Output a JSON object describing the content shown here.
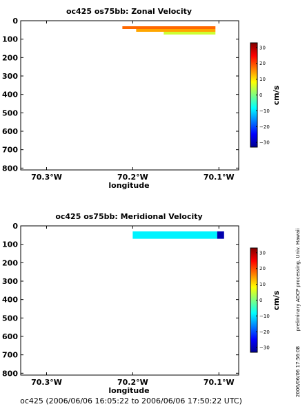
{
  "chart_data": [
    {
      "type": "heatmap",
      "title": "oc425 os75bb: Zonal Velocity",
      "xlabel": "longitude",
      "ylabel": "",
      "xlim": [
        -70.33,
        -70.077
      ],
      "ylim": [
        810,
        0
      ],
      "yticks": [
        "0",
        "100",
        "200",
        "300",
        "400",
        "500",
        "600",
        "700",
        "800"
      ],
      "xticks": [
        "70.3°W",
        "70.2°W",
        "70.1°W"
      ],
      "colorbar": {
        "label": "cm/s",
        "range": [
          -33,
          33
        ],
        "ticks": [
          "30",
          "20",
          "10",
          "0",
          "−10",
          "−20",
          "−30"
        ]
      },
      "sections": [
        {
          "lon_start": -70.212,
          "lon_end": -70.104,
          "depth_top": 30,
          "depth_bottom": 45,
          "value": 18
        },
        {
          "lon_start": -70.196,
          "lon_end": -70.104,
          "depth_top": 45,
          "depth_bottom": 60,
          "value": 14
        },
        {
          "lon_start": -70.164,
          "lon_end": -70.104,
          "depth_top": 60,
          "depth_bottom": 75,
          "value": 5
        }
      ]
    },
    {
      "type": "heatmap",
      "title": "oc425 os75bb: Meridional Velocity",
      "xlabel": "longitude",
      "ylabel": "",
      "xlim": [
        -70.33,
        -70.077
      ],
      "ylim": [
        810,
        0
      ],
      "yticks": [
        "0",
        "100",
        "200",
        "300",
        "400",
        "500",
        "600",
        "700",
        "800"
      ],
      "xticks": [
        "70.3°W",
        "70.2°W",
        "70.1°W"
      ],
      "colorbar": {
        "label": "cm/s",
        "range": [
          -33,
          33
        ],
        "ticks": [
          "30",
          "20",
          "10",
          "0",
          "−10",
          "−20",
          "−30"
        ]
      },
      "sections": [
        {
          "lon_start": -70.2,
          "lon_end": -70.102,
          "depth_top": 30,
          "depth_bottom": 70,
          "value": -9
        },
        {
          "lon_start": -70.102,
          "lon_end": -70.094,
          "depth_top": 30,
          "depth_bottom": 70,
          "value": -30
        }
      ]
    }
  ],
  "side_text": {
    "processing": "preliminary ADCP processing,  Univ. Hawaii",
    "timestamp": "2006/06/06 17:56:08"
  },
  "footer": "oc425 (2006/06/06 16:05:22 to 2006/06/06 17:50:22 UTC)"
}
